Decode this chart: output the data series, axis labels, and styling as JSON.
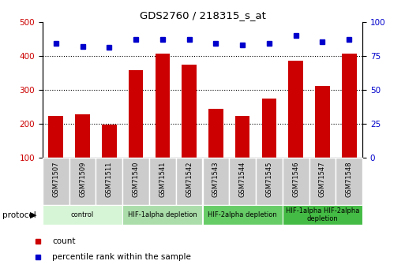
{
  "title": "GDS2760 / 218315_s_at",
  "samples": [
    "GSM71507",
    "GSM71509",
    "GSM71511",
    "GSM71540",
    "GSM71541",
    "GSM71542",
    "GSM71543",
    "GSM71544",
    "GSM71545",
    "GSM71546",
    "GSM71547",
    "GSM71548"
  ],
  "count_values": [
    222,
    228,
    198,
    358,
    407,
    375,
    244,
    222,
    275,
    385,
    312,
    407
  ],
  "percentile_values": [
    84,
    82,
    81,
    87,
    87,
    87,
    84,
    83,
    84,
    90,
    85,
    87
  ],
  "bar_color": "#cc0000",
  "dot_color": "#0000cc",
  "ylim_left": [
    100,
    500
  ],
  "ylim_right": [
    0,
    100
  ],
  "yticks_left": [
    100,
    200,
    300,
    400,
    500
  ],
  "yticks_right": [
    0,
    25,
    50,
    75,
    100
  ],
  "grid_values": [
    200,
    300,
    400
  ],
  "groups": [
    {
      "label": "control",
      "start": 0,
      "end": 3,
      "color": "#d6f5d6"
    },
    {
      "label": "HIF-1alpha depletion",
      "start": 3,
      "end": 6,
      "color": "#aaddaa"
    },
    {
      "label": "HIF-2alpha depletion",
      "start": 6,
      "end": 9,
      "color": "#66cc66"
    },
    {
      "label": "HIF-1alpha HIF-2alpha\ndepletion",
      "start": 9,
      "end": 12,
      "color": "#44bb44"
    }
  ],
  "protocol_label": "protocol",
  "legend_count_label": "count",
  "legend_pct_label": "percentile rank within the sample",
  "tick_label_color_left": "#cc0000",
  "tick_label_color_right": "#0000cc",
  "background_color": "#ffffff",
  "xlabel_bg": "#cccccc",
  "bar_bottom": 100
}
